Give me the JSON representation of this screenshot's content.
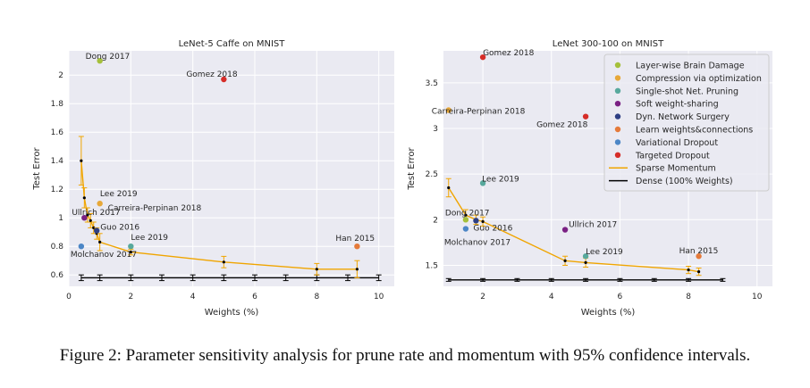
{
  "caption": "Figure 2: Parameter sensitivity analysis for prune rate and momentum with 95% confidence intervals.",
  "colors": {
    "Layer-wise Brain Damage": "#a5c03b",
    "Compression via optimization": "#e7a838",
    "Single-shot Net. Pruning": "#58a99d",
    "Soft weight-sharing": "#7a2083",
    "Dyn. Network Surgery": "#2e3f84",
    "Learn weights&connections": "#e57a3a",
    "Variational Dropout": "#4c86c6",
    "Targeted Dropout": "#d62d28",
    "sparse": "#f0a500",
    "dense": "#000000"
  },
  "legend": [
    {
      "label": "Layer-wise Brain Damage",
      "kind": "dot"
    },
    {
      "label": "Compression via optimization",
      "kind": "dot"
    },
    {
      "label": "Single-shot Net. Pruning",
      "kind": "dot"
    },
    {
      "label": "Soft weight-sharing",
      "kind": "dot"
    },
    {
      "label": "Dyn. Network Surgery",
      "kind": "dot"
    },
    {
      "label": "Learn weights&connections",
      "kind": "dot"
    },
    {
      "label": "Variational Dropout",
      "kind": "dot"
    },
    {
      "label": "Targeted Dropout",
      "kind": "dot"
    },
    {
      "label": "Sparse Momentum",
      "kind": "line",
      "color": "sparse"
    },
    {
      "label": "Dense (100% Weights)",
      "kind": "line",
      "color": "dense"
    }
  ],
  "chart_data": [
    {
      "type": "scatter",
      "title": "LeNet-5 Caffe on MNIST",
      "xlabel": "Weights (%)",
      "ylabel": "Test Error",
      "xlim": [
        0,
        10.5
      ],
      "ylim": [
        0.52,
        2.17
      ],
      "xticks": [
        0,
        2,
        4,
        6,
        8,
        10
      ],
      "yticks": [
        0.6,
        0.8,
        1.0,
        1.2,
        1.4,
        1.6,
        1.8,
        2.0
      ],
      "grid": true,
      "methods": [
        {
          "method": "Layer-wise Brain Damage",
          "label": "Dong 2017",
          "x": 1.0,
          "y": 2.1
        },
        {
          "method": "Targeted Dropout",
          "label": "Gomez 2018",
          "x": 5.0,
          "y": 1.97
        },
        {
          "method": "Compression via optimization",
          "label": "Carreira-Perpinan 2018",
          "x": 1.0,
          "y": 1.1
        },
        {
          "method": "Soft weight-sharing",
          "label": "Ullrich 2017",
          "x": 0.5,
          "y": 1.0
        },
        {
          "method": "Dyn. Network Surgery",
          "label": "Guo 2016",
          "x": 0.9,
          "y": 0.91
        },
        {
          "method": "Single-shot Net. Pruning",
          "label": "Lee 2019",
          "x": 2.0,
          "y": 0.8
        },
        {
          "method": "Variational Dropout",
          "label": "Molchanov 2017",
          "x": 0.4,
          "y": 0.8
        },
        {
          "method": "Learn weights&connections",
          "label": "Han 2015",
          "x": 9.3,
          "y": 0.8
        }
      ],
      "extra_labels": [
        {
          "text": "Lee 2019",
          "x": 0.95,
          "y": 1.14
        }
      ],
      "sparse_momentum": {
        "x": [
          0.4,
          0.5,
          0.6,
          0.7,
          0.8,
          0.9,
          1.0,
          2.0,
          5.0,
          8.0,
          9.3
        ],
        "y": [
          1.4,
          1.14,
          1.02,
          0.98,
          0.93,
          0.89,
          0.83,
          0.76,
          0.69,
          0.64,
          0.64
        ],
        "err": [
          0.17,
          0.07,
          0.05,
          0.05,
          0.04,
          0.04,
          0.06,
          0.02,
          0.04,
          0.04,
          0.06
        ]
      },
      "dense": {
        "x": [
          0.4,
          1,
          2,
          3,
          4,
          5,
          6,
          7,
          8,
          9,
          10
        ],
        "y": [
          0.58,
          0.58,
          0.58,
          0.58,
          0.58,
          0.58,
          0.58,
          0.58,
          0.58,
          0.58,
          0.58
        ],
        "err": [
          0.02,
          0.02,
          0.02,
          0.02,
          0.02,
          0.02,
          0.02,
          0.02,
          0.02,
          0.02,
          0.02
        ]
      }
    },
    {
      "type": "scatter",
      "title": "LeNet 300-100 on MNIST",
      "xlabel": "Weights (%)",
      "ylabel": "Test Error",
      "xlim": [
        0.85,
        10.45
      ],
      "ylim": [
        1.27,
        3.85
      ],
      "xticks": [
        2,
        4,
        6,
        8,
        10
      ],
      "yticks": [
        1.5,
        2.0,
        2.5,
        3.0,
        3.5
      ],
      "grid": true,
      "legend_position": "top-right",
      "methods": [
        {
          "method": "Targeted Dropout",
          "label": "Gomez 2018",
          "x": 2.0,
          "y": 3.78
        },
        {
          "method": "Compression via optimization",
          "label": "Carreira-Perpinan 2018",
          "x": 1.0,
          "y": 3.2
        },
        {
          "method": "Targeted Dropout",
          "label": "Gomez 2018",
          "x": 5.0,
          "y": 3.13
        },
        {
          "method": "Single-shot Net. Pruning",
          "label": "Lee 2019",
          "x": 2.0,
          "y": 2.4
        },
        {
          "method": "Layer-wise Brain Damage",
          "label": "Dong 2017",
          "x": 1.5,
          "y": 2.0
        },
        {
          "method": "Dyn. Network Surgery",
          "label": "Guo 2016",
          "x": 1.8,
          "y": 1.99
        },
        {
          "method": "Variational Dropout",
          "label": "Molchanov 2017",
          "x": 1.5,
          "y": 1.9
        },
        {
          "method": "Soft weight-sharing",
          "label": "Ullrich 2017",
          "x": 4.4,
          "y": 1.89
        },
        {
          "method": "Single-shot Net. Pruning",
          "label": "Lee 2019",
          "x": 5.0,
          "y": 1.6
        },
        {
          "method": "Learn weights&connections",
          "label": "Han 2015",
          "x": 8.3,
          "y": 1.6
        }
      ],
      "extra_labels": [],
      "sparse_momentum": {
        "x": [
          1.0,
          1.5,
          1.8,
          2.0,
          4.4,
          5.0,
          8.0,
          8.3
        ],
        "y": [
          2.35,
          2.05,
          2.0,
          1.98,
          1.55,
          1.53,
          1.45,
          1.43
        ],
        "err": [
          0.1,
          0.06,
          0.05,
          0.05,
          0.05,
          0.05,
          0.04,
          0.04
        ]
      },
      "dense": {
        "x": [
          1,
          2,
          3,
          4,
          5,
          6,
          7,
          8,
          9
        ],
        "y": [
          1.34,
          1.34,
          1.34,
          1.34,
          1.34,
          1.34,
          1.34,
          1.34,
          1.34
        ],
        "err": [
          0.015,
          0.015,
          0.015,
          0.015,
          0.015,
          0.015,
          0.015,
          0.015,
          0.015
        ]
      }
    }
  ]
}
